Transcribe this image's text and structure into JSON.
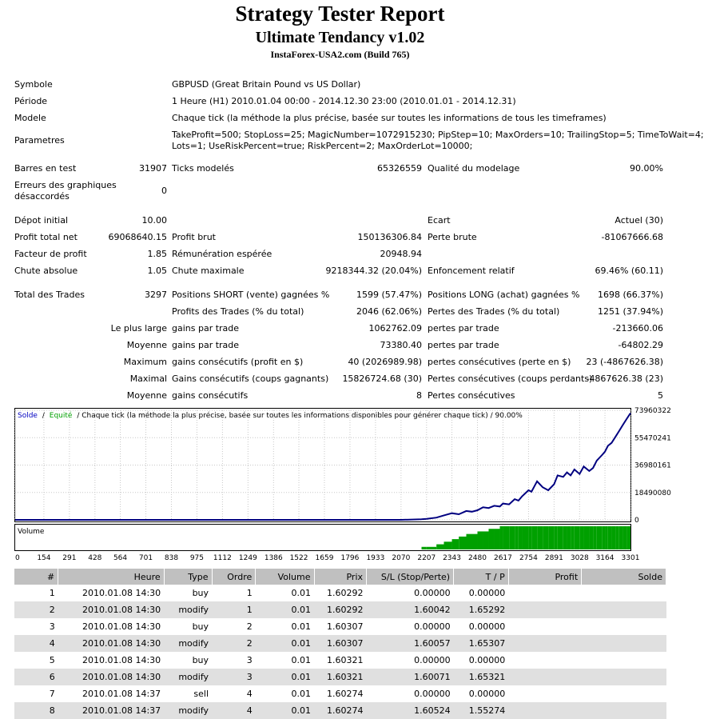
{
  "header": {
    "title": "Strategy Tester Report",
    "subtitle": "Ultimate Tendancy v1.02",
    "server": "InstaForex-USA2.com (Build 765)"
  },
  "info": {
    "symbol_label": "Symbole",
    "symbol_value": "GBPUSD (Great Britain Pound vs US Dollar)",
    "period_label": "Période",
    "period_value": "1 Heure (H1) 2010.01.04 00:00 - 2014.12.30 23:00 (2010.01.01 - 2014.12.31)",
    "model_label": "Modele",
    "model_value": "Chaque tick (la méthode la plus précise, basée sur toutes les informations de tous les timeframes)",
    "params_label": "Parametres",
    "params_line1": "TakeProfit=500; StopLoss=25; MagicNumber=1072915230; PipStep=10; MaxOrders=10; TrailingStop=5; TimeToWait=4;",
    "params_line2": "Lots=1; UseRiskPercent=true; RiskPercent=2; MaxOrderLot=10000;"
  },
  "stats": {
    "bars_label": "Barres en test",
    "bars_value": "31907",
    "ticks_label": "Ticks modelés",
    "ticks_value": "65326559",
    "quality_label": "Qualité du modelage",
    "quality_value": "90.00%",
    "errors_label_1": "Erreurs des graphiques",
    "errors_label_2": "désaccordés",
    "errors_value": "0",
    "deposit_label": "Dépot initial",
    "deposit_value": "10.00",
    "spread_label": "Ecart",
    "spread_value": "Actuel (30)",
    "net_profit_label": "Profit total net",
    "net_profit_value": "69068640.15",
    "gross_profit_label": "Profit brut",
    "gross_profit_value": "150136306.84",
    "gross_loss_label": "Perte brute",
    "gross_loss_value": "-81067666.68",
    "profit_factor_label": "Facteur de profit",
    "profit_factor_value": "1.85",
    "expected_payoff_label": "Rémunération espérée",
    "expected_payoff_value": "20948.94",
    "abs_dd_label": "Chute absolue",
    "abs_dd_value": "1.05",
    "max_dd_label": "Chute maximale",
    "max_dd_value": "9218344.32 (20.04%)",
    "rel_dd_label": "Enfoncement relatif",
    "rel_dd_value": "69.46% (60.11)",
    "total_trades_label": "Total des Trades",
    "total_trades_value": "3297",
    "short_label": "Positions SHORT (vente) gagnées %",
    "short_value": "1599 (57.47%)",
    "long_label": "Positions LONG (achat) gagnées %",
    "long_value": "1698 (66.37%)",
    "profit_trades_label": "Profits des Trades (% du total)",
    "profit_trades_value": "2046 (62.06%)",
    "loss_trades_label": "Pertes des Trades (% du total)",
    "loss_trades_value": "1251 (37.94%)",
    "largest_label": "Le plus large",
    "largest_profit_label": "gains par trade",
    "largest_profit_value": "1062762.09",
    "largest_loss_label": "pertes par trade",
    "largest_loss_value": "-213660.06",
    "average_label": "Moyenne",
    "average_profit_label": "gains par trade",
    "average_profit_value": "73380.40",
    "average_loss_label": "pertes par trade",
    "average_loss_value": "-64802.29",
    "maximum_label": "Maximum",
    "max_cons_wins_label": "gains consécutifs (profit en $)",
    "max_cons_wins_value": "40 (2026989.98)",
    "max_cons_losses_label": "pertes consécutives (perte en $)",
    "max_cons_losses_value": "23 (-4867626.38)",
    "maximal_label": "Maximal",
    "maximal_wins_label": "Gains consécutifs (coups gagnants)",
    "maximal_wins_value": "15826724.68 (30)",
    "maximal_losses_label": "Pertes consécutives (coups perdants)",
    "maximal_losses_value": "-4867626.38 (23)",
    "average2_label": "Moyenne",
    "avg_cons_wins_label": "gains consécutifs",
    "avg_cons_wins_value": "8",
    "avg_cons_losses_label": "Pertes consécutives",
    "avg_cons_losses_value": "5"
  },
  "chart_data": {
    "type": "line",
    "legend_balance": "Solde",
    "legend_separator": "/",
    "legend_equity": "Equité",
    "legend_rest": "/ Chaque tick (la méthode la plus précise, basée sur toutes les informations disponibles pour générer chaque tick) / 90.00%",
    "y_ticks": [
      "73960322",
      "55470241",
      "36980161",
      "18490080",
      "0"
    ],
    "y_tick_values": [
      73960322,
      55470241,
      36980161,
      18490080,
      0
    ],
    "ylim": [
      0,
      73960322
    ],
    "x_ticks": [
      "0",
      "154",
      "291",
      "428",
      "564",
      "701",
      "838",
      "975",
      "1112",
      "1249",
      "1386",
      "1522",
      "1659",
      "1796",
      "1933",
      "2070",
      "2207",
      "2343",
      "2480",
      "2617",
      "2754",
      "2891",
      "3028",
      "3164",
      "3301"
    ],
    "xlim": [
      0,
      3301
    ],
    "series": [
      {
        "name": "Solde",
        "x": [
          0,
          1000,
          1800,
          2070,
          2130,
          2180,
          2207,
          2260,
          2300,
          2343,
          2380,
          2420,
          2450,
          2480,
          2510,
          2540,
          2570,
          2600,
          2617,
          2650,
          2680,
          2700,
          2720,
          2754,
          2770,
          2800,
          2830,
          2860,
          2891,
          2910,
          2940,
          2960,
          2980,
          3000,
          3028,
          3050,
          3080,
          3100,
          3120,
          3150,
          3164,
          3180,
          3200,
          3220,
          3240,
          3260,
          3280,
          3301
        ],
        "y": [
          0,
          0,
          0,
          0,
          200000,
          400000,
          700000,
          1500000,
          3000000,
          4500000,
          3800000,
          6000000,
          5500000,
          6500000,
          8500000,
          8000000,
          9500000,
          9000000,
          11000000,
          10500000,
          14000000,
          13000000,
          16000000,
          20000000,
          19000000,
          26000000,
          22000000,
          20000000,
          24000000,
          30000000,
          29000000,
          32000000,
          30000000,
          34000000,
          31000000,
          36000000,
          33000000,
          35000000,
          40000000,
          44000000,
          46000000,
          50000000,
          52000000,
          56000000,
          60000000,
          64000000,
          68000000,
          72000000
        ]
      }
    ],
    "volume_label": "Volume",
    "volume_y": [
      0,
      0,
      0,
      0,
      0,
      1,
      1,
      2,
      3,
      4,
      5,
      6,
      6,
      7,
      7,
      8,
      8,
      9,
      9,
      9,
      9,
      9,
      9,
      9,
      9,
      9,
      9,
      9,
      9,
      9,
      9,
      9,
      9,
      9,
      9,
      9,
      9,
      9,
      9,
      9,
      9,
      9,
      9,
      9,
      9,
      9,
      9,
      9
    ],
    "colors": {
      "balance": "#000080",
      "equity": "#00aa00",
      "volume": "#00a000"
    }
  },
  "trades": {
    "headers": [
      "#",
      "Heure",
      "Type",
      "Ordre",
      "Volume",
      "Prix",
      "S/L (Stop/Perte)",
      "T / P",
      "Profit",
      "Solde"
    ],
    "rows": [
      [
        "1",
        "2010.01.08 14:30",
        "buy",
        "1",
        "0.01",
        "1.60292",
        "0.00000",
        "0.00000",
        "",
        ""
      ],
      [
        "2",
        "2010.01.08 14:30",
        "modify",
        "1",
        "0.01",
        "1.60292",
        "1.60042",
        "1.65292",
        "",
        ""
      ],
      [
        "3",
        "2010.01.08 14:30",
        "buy",
        "2",
        "0.01",
        "1.60307",
        "0.00000",
        "0.00000",
        "",
        ""
      ],
      [
        "4",
        "2010.01.08 14:30",
        "modify",
        "2",
        "0.01",
        "1.60307",
        "1.60057",
        "1.65307",
        "",
        ""
      ],
      [
        "5",
        "2010.01.08 14:30",
        "buy",
        "3",
        "0.01",
        "1.60321",
        "0.00000",
        "0.00000",
        "",
        ""
      ],
      [
        "6",
        "2010.01.08 14:30",
        "modify",
        "3",
        "0.01",
        "1.60321",
        "1.60071",
        "1.65321",
        "",
        ""
      ],
      [
        "7",
        "2010.01.08 14:37",
        "sell",
        "4",
        "0.01",
        "1.60274",
        "0.00000",
        "0.00000",
        "",
        ""
      ],
      [
        "8",
        "2010.01.08 14:37",
        "modify",
        "4",
        "0.01",
        "1.60274",
        "1.60524",
        "1.55274",
        "",
        ""
      ]
    ]
  }
}
